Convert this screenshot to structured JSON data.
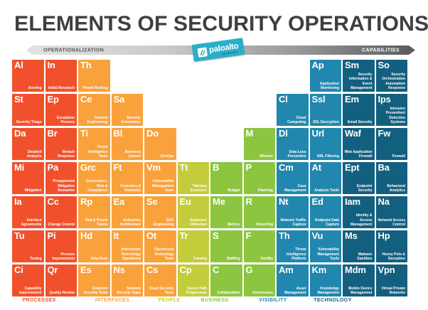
{
  "title": "ELEMENTS OF SECURITY OPERATIONS",
  "header": {
    "left_label": "OPERATIONALIZATION",
    "right_label": "CAPABILITIES",
    "logo": {
      "text": "paloalto",
      "sub_text": "NETWORKS",
      "color": "#2bafc9"
    }
  },
  "categories": [
    {
      "id": "processes",
      "label": "PROCESSES",
      "color": "#f0512c"
    },
    {
      "id": "interfaces",
      "label": "INTERFACES",
      "color": "#f9a13b"
    },
    {
      "id": "people",
      "label": "PEOPLE",
      "color": "#c3cc3a"
    },
    {
      "id": "business",
      "label": "BUSINESS",
      "color": "#8cc540"
    },
    {
      "id": "visibility",
      "label": "VISIBILITY",
      "color": "#2187ae"
    },
    {
      "id": "technology",
      "label": "TECHNOLOGY",
      "color": "#135f7f"
    }
  ],
  "elements": [
    {
      "symbol": "Al",
      "name": "Alerting",
      "row": 1,
      "col": 1,
      "category": "processes"
    },
    {
      "symbol": "In",
      "name": "Initial Research",
      "row": 1,
      "col": 2,
      "category": "processes"
    },
    {
      "symbol": "Th",
      "name": "Threat Hunting",
      "row": 1,
      "col": 3,
      "category": "interfaces"
    },
    {
      "symbol": "Ap",
      "name": "Application Monitoring",
      "row": 1,
      "col": 10,
      "category": "visibility"
    },
    {
      "symbol": "Sm",
      "name": "Security Information & Event Management",
      "row": 1,
      "col": 11,
      "category": "technology"
    },
    {
      "symbol": "So",
      "name": "Security Orchestration Automation Response",
      "row": 1,
      "col": 12,
      "category": "technology"
    },
    {
      "symbol": "St",
      "name": "Severity Triage",
      "row": 2,
      "col": 1,
      "category": "processes"
    },
    {
      "symbol": "Ep",
      "name": "Escalation Process",
      "row": 2,
      "col": 2,
      "category": "processes"
    },
    {
      "symbol": "Ce",
      "name": "Content Engineering",
      "row": 2,
      "col": 3,
      "category": "interfaces"
    },
    {
      "symbol": "Sa",
      "name": "Security Automation",
      "row": 2,
      "col": 4,
      "category": "interfaces"
    },
    {
      "symbol": "Cl",
      "name": "Cloud Computing",
      "row": 2,
      "col": 9,
      "category": "visibility"
    },
    {
      "symbol": "Ssl",
      "name": "SSL Decryption",
      "row": 2,
      "col": 10,
      "category": "visibility"
    },
    {
      "symbol": "Em",
      "name": "Email Security",
      "row": 2,
      "col": 11,
      "category": "technology"
    },
    {
      "symbol": "Ips",
      "name": "Intrusion Prevention/ Detection Systems",
      "row": 2,
      "col": 12,
      "category": "technology"
    },
    {
      "symbol": "Da",
      "name": "Detailed Analysis",
      "row": 3,
      "col": 1,
      "category": "processes"
    },
    {
      "symbol": "Br",
      "name": "Breach Response",
      "row": 3,
      "col": 2,
      "category": "processes"
    },
    {
      "symbol": "Ti",
      "name": "Threat Intelligence Team",
      "row": 3,
      "col": 3,
      "category": "interfaces"
    },
    {
      "symbol": "Bl",
      "name": "Business Liaison",
      "row": 3,
      "col": 4,
      "category": "interfaces"
    },
    {
      "symbol": "Do",
      "name": "DevOps",
      "row": 3,
      "col": 5,
      "category": "interfaces"
    },
    {
      "symbol": "M",
      "name": "Mission",
      "row": 3,
      "col": 8,
      "category": "business"
    },
    {
      "symbol": "Dl",
      "name": "Data Loss Prevention",
      "row": 3,
      "col": 9,
      "category": "visibility"
    },
    {
      "symbol": "Url",
      "name": "URL Filtering",
      "row": 3,
      "col": 10,
      "category": "visibility"
    },
    {
      "symbol": "Waf",
      "name": "Web Application Firewall",
      "row": 3,
      "col": 11,
      "category": "technology"
    },
    {
      "symbol": "Fw",
      "name": "Firewall",
      "row": 3,
      "col": 12,
      "category": "technology"
    },
    {
      "symbol": "Mi",
      "name": "Mitigation",
      "row": 4,
      "col": 1,
      "category": "processes"
    },
    {
      "symbol": "Pa",
      "name": "Preapproved Mitigation Scenarios",
      "row": 4,
      "col": 2,
      "category": "processes"
    },
    {
      "symbol": "Grc",
      "name": "Governance, Risk & Compliance",
      "row": 4,
      "col": 3,
      "category": "interfaces"
    },
    {
      "symbol": "Ft",
      "name": "Forensics & Telemetry",
      "row": 4,
      "col": 4,
      "category": "interfaces"
    },
    {
      "symbol": "Vm",
      "name": "Vulnerability Management Team",
      "row": 4,
      "col": 5,
      "category": "interfaces"
    },
    {
      "symbol": "Tt",
      "name": "Tabletop Exercises",
      "row": 4,
      "col": 6,
      "category": "people"
    },
    {
      "symbol": "B",
      "name": "Budget",
      "row": 4,
      "col": 7,
      "category": "business"
    },
    {
      "symbol": "P",
      "name": "Planning",
      "row": 4,
      "col": 8,
      "category": "business"
    },
    {
      "symbol": "Cm",
      "name": "Case Management",
      "row": 4,
      "col": 9,
      "category": "visibility"
    },
    {
      "symbol": "At",
      "name": "Analysis Tools",
      "row": 4,
      "col": 10,
      "category": "visibility"
    },
    {
      "symbol": "Ept",
      "name": "Endpoint Security",
      "row": 4,
      "col": 11,
      "category": "technology"
    },
    {
      "symbol": "Ba",
      "name": "Behavioral Analytics",
      "row": 4,
      "col": 12,
      "category": "technology"
    },
    {
      "symbol": "Ia",
      "name": "Interface Agreements",
      "row": 5,
      "col": 1,
      "category": "processes"
    },
    {
      "symbol": "Cc",
      "name": "Change Control",
      "row": 5,
      "col": 2,
      "category": "processes"
    },
    {
      "symbol": "Rp",
      "name": "Red & Purple Teams",
      "row": 5,
      "col": 3,
      "category": "interfaces"
    },
    {
      "symbol": "Ea",
      "name": "Enterprise Architecture",
      "row": 5,
      "col": 4,
      "category": "interfaces"
    },
    {
      "symbol": "Se",
      "name": "SOC Engineering",
      "row": 5,
      "col": 5,
      "category": "interfaces"
    },
    {
      "symbol": "Eu",
      "name": "Employee Utilization",
      "row": 5,
      "col": 6,
      "category": "people"
    },
    {
      "symbol": "Me",
      "name": "Metrics",
      "row": 5,
      "col": 7,
      "category": "business"
    },
    {
      "symbol": "R",
      "name": "Reporting",
      "row": 5,
      "col": 8,
      "category": "business"
    },
    {
      "symbol": "Nt",
      "name": "Network Traffic Capture",
      "row": 5,
      "col": 9,
      "category": "visibility"
    },
    {
      "symbol": "Ed",
      "name": "Endpoint Data Capture",
      "row": 5,
      "col": 10,
      "category": "visibility"
    },
    {
      "symbol": "Iam",
      "name": "Identity & Access Management",
      "row": 5,
      "col": 11,
      "category": "technology"
    },
    {
      "symbol": "Na",
      "name": "Network Access Control",
      "row": 5,
      "col": 12,
      "category": "technology"
    },
    {
      "symbol": "Tu",
      "name": "Tuning",
      "row": 6,
      "col": 1,
      "category": "processes"
    },
    {
      "symbol": "Pi",
      "name": "Process Improvement",
      "row": 6,
      "col": 2,
      "category": "processes"
    },
    {
      "symbol": "Hd",
      "name": "Help Desk",
      "row": 6,
      "col": 3,
      "category": "interfaces"
    },
    {
      "symbol": "It",
      "name": "Information Technology Operations",
      "row": 6,
      "col": 4,
      "category": "interfaces"
    },
    {
      "symbol": "Ot",
      "name": "Operational Technology Team",
      "row": 6,
      "col": 5,
      "category": "interfaces"
    },
    {
      "symbol": "Tr",
      "name": "Training",
      "row": 6,
      "col": 6,
      "category": "people"
    },
    {
      "symbol": "S",
      "name": "Staffing",
      "row": 6,
      "col": 7,
      "category": "business"
    },
    {
      "symbol": "F",
      "name": "Facility",
      "row": 6,
      "col": 8,
      "category": "business"
    },
    {
      "symbol": "Th",
      "name": "Threat Intelligence Platform",
      "row": 6,
      "col": 9,
      "category": "visibility"
    },
    {
      "symbol": "Vu",
      "name": "Vulnerability Management Tools",
      "row": 6,
      "col": 10,
      "category": "visibility"
    },
    {
      "symbol": "Ms",
      "name": "Malware Sandbox",
      "row": 6,
      "col": 11,
      "category": "technology"
    },
    {
      "symbol": "Hp",
      "name": "Honey Pots & Deception",
      "row": 6,
      "col": 12,
      "category": "technology"
    },
    {
      "symbol": "Ci",
      "name": "Capability Improvement",
      "row": 7,
      "col": 1,
      "category": "processes"
    },
    {
      "symbol": "Qr",
      "name": "Quality Review",
      "row": 7,
      "col": 2,
      "category": "processes"
    },
    {
      "symbol": "Es",
      "name": "Endpoint Security Team",
      "row": 7,
      "col": 3,
      "category": "interfaces"
    },
    {
      "symbol": "Ns",
      "name": "Network Security Team",
      "row": 7,
      "col": 4,
      "category": "interfaces"
    },
    {
      "symbol": "Cs",
      "name": "Cloud Security Team",
      "row": 7,
      "col": 5,
      "category": "interfaces"
    },
    {
      "symbol": "Cp",
      "name": "Career Path Progression",
      "row": 7,
      "col": 6,
      "category": "people"
    },
    {
      "symbol": "C",
      "name": "Collaboration",
      "row": 7,
      "col": 7,
      "category": "business"
    },
    {
      "symbol": "G",
      "name": "Governance",
      "row": 7,
      "col": 8,
      "category": "business"
    },
    {
      "symbol": "Am",
      "name": "Asset Management",
      "row": 7,
      "col": 9,
      "category": "visibility"
    },
    {
      "symbol": "Km",
      "name": "Knowledge Management",
      "row": 7,
      "col": 10,
      "category": "visibility"
    },
    {
      "symbol": "Mdm",
      "name": "Mobile Device Management",
      "row": 7,
      "col": 11,
      "category": "technology"
    },
    {
      "symbol": "Vpn",
      "name": "Virtual Private Networks",
      "row": 7,
      "col": 12,
      "category": "technology"
    }
  ]
}
